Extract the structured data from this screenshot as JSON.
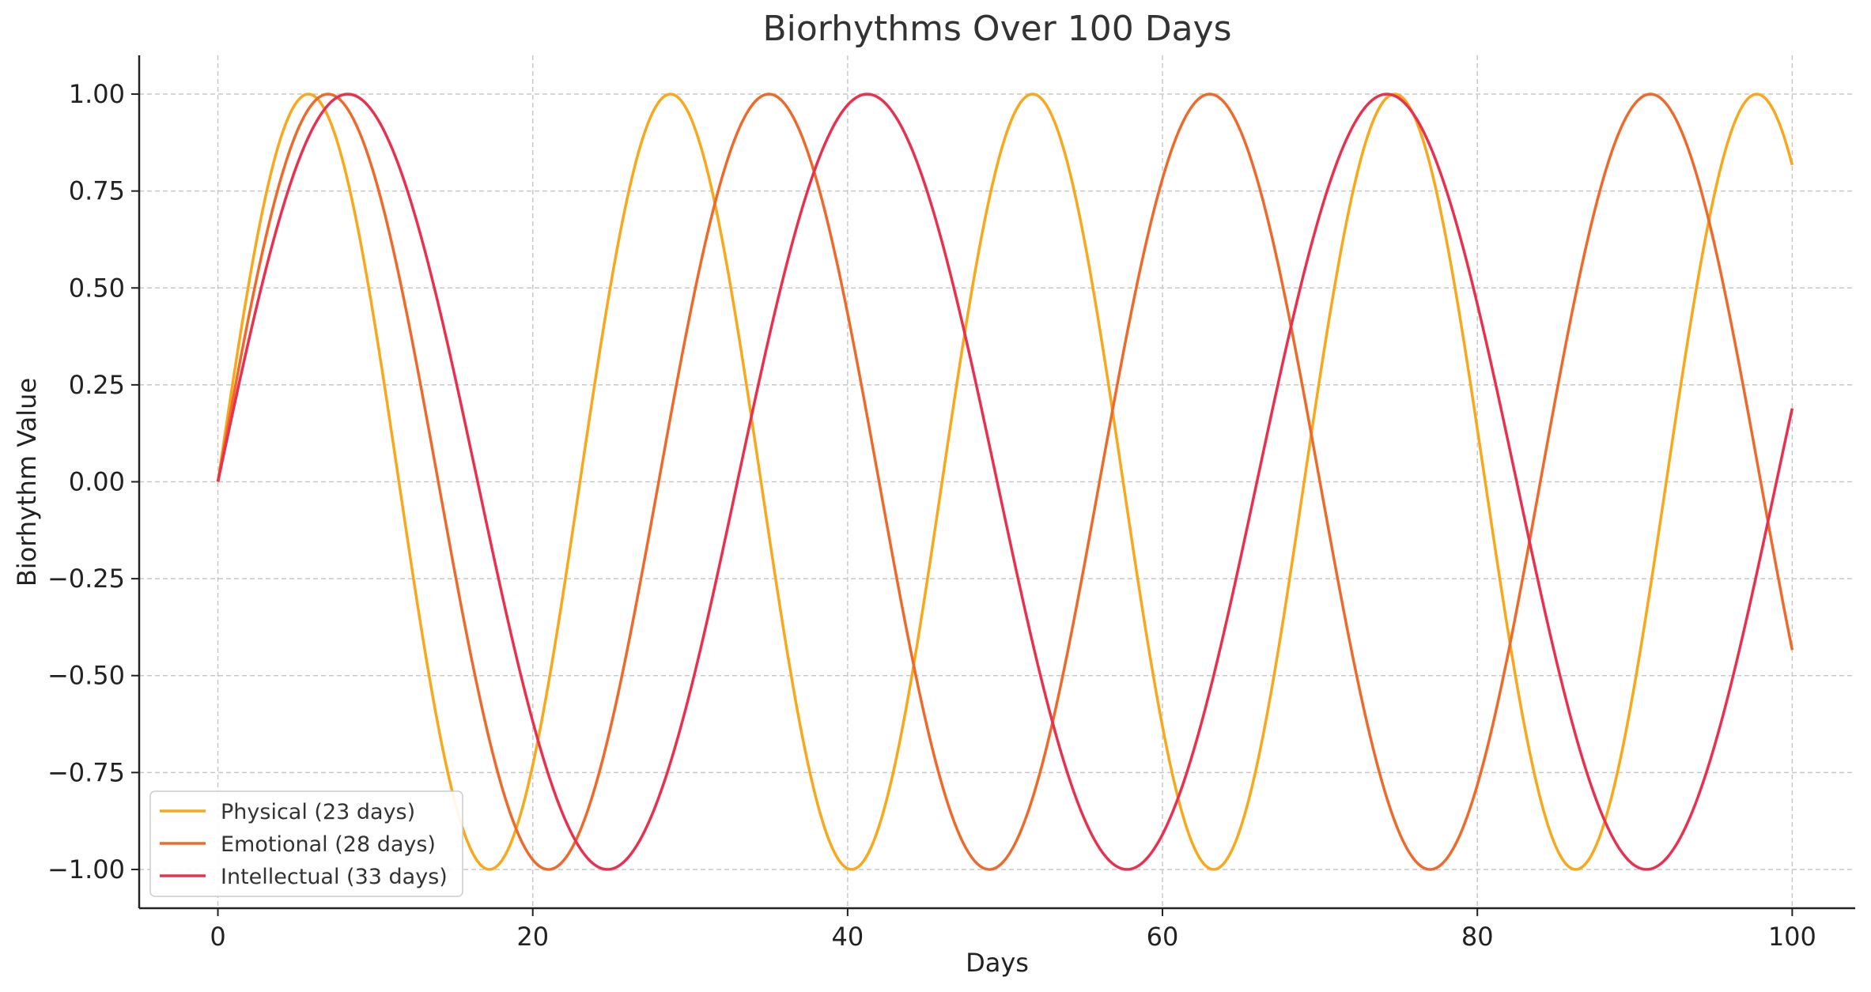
{
  "chart_data": {
    "type": "line",
    "title": "Biorhythms Over 100 Days",
    "xlabel": "Days",
    "ylabel": "Biorhythm Value",
    "xlim": [
      -5,
      104
    ],
    "ylim": [
      -1.1,
      1.1
    ],
    "x_ticks": [
      0,
      20,
      40,
      60,
      80,
      100
    ],
    "x_tick_labels": [
      "0",
      "20",
      "40",
      "60",
      "80",
      "100"
    ],
    "y_ticks": [
      -1.0,
      -0.75,
      -0.5,
      -0.25,
      0.0,
      0.25,
      0.5,
      0.75,
      1.0
    ],
    "y_tick_labels": [
      "−1.00",
      "−0.75",
      "−0.50",
      "−0.25",
      "0.00",
      "0.25",
      "0.50",
      "0.75",
      "1.00"
    ],
    "grid": true,
    "legend_position": "lower-left",
    "x_range": [
      0,
      100
    ],
    "series": [
      {
        "name": "Physical (23 days)",
        "period": 23,
        "color": "#F7A81B",
        "function": "sin(2*pi*x/period)"
      },
      {
        "name": "Emotional (28 days)",
        "period": 28,
        "color": "#EE6A2A",
        "function": "sin(2*pi*x/period)"
      },
      {
        "name": "Intellectual (33 days)",
        "period": 33,
        "color": "#E8304F",
        "function": "sin(2*pi*x/period)"
      }
    ]
  }
}
